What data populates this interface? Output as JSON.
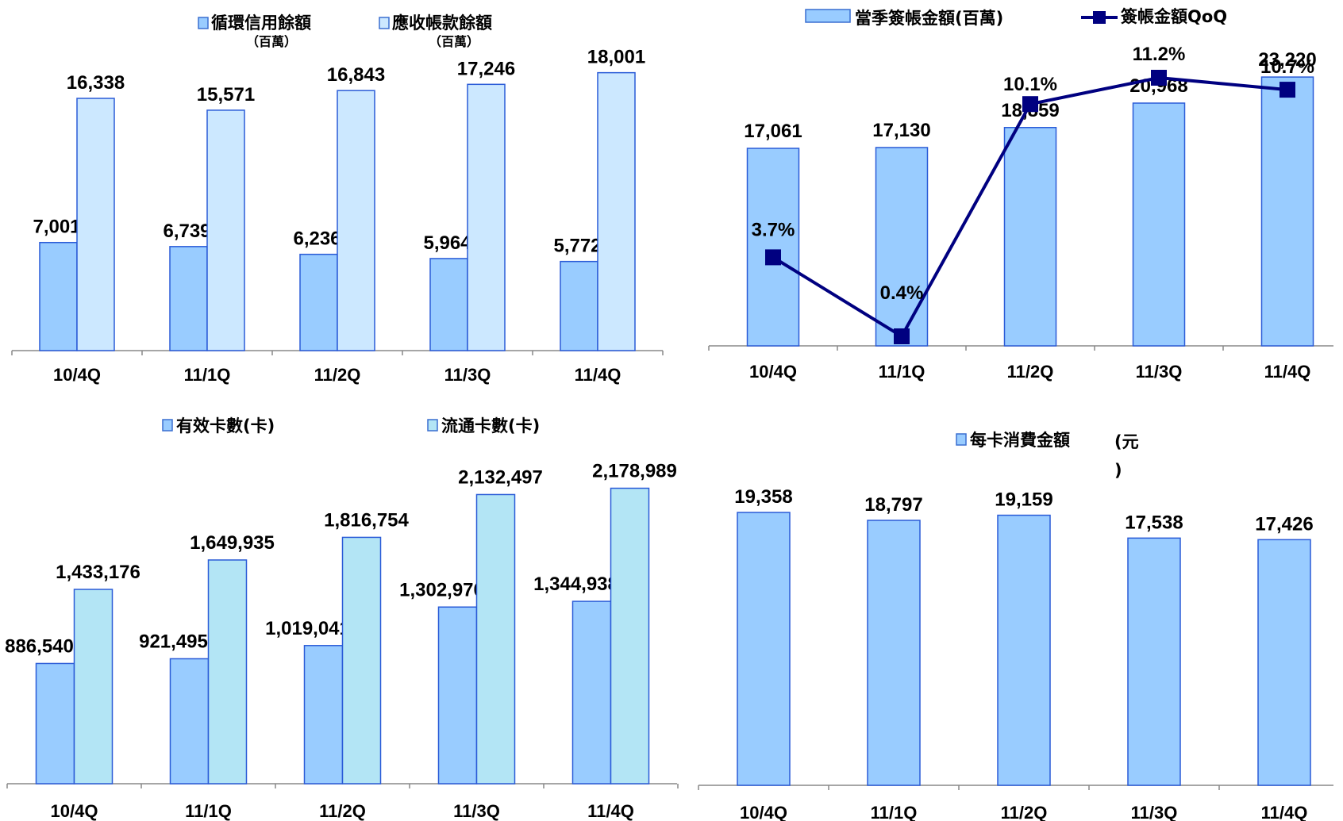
{
  "chart_data": [
    {
      "type": "bar",
      "categories": [
        "10/4Q",
        "11/1Q",
        "11/2Q",
        "11/3Q",
        "11/4Q"
      ],
      "series": [
        {
          "name": "循環信用餘額",
          "name_sub": "（百萬）",
          "values": [
            7001,
            6739,
            6236,
            5964,
            5772
          ],
          "labels": [
            "7,001",
            "6,739",
            "6,236",
            "5,964",
            "5,772"
          ],
          "color": "#99ccff"
        },
        {
          "name": "應收帳款餘額",
          "name_sub": "（百萬）",
          "values": [
            16338,
            15571,
            16843,
            17246,
            18001
          ],
          "labels": [
            "16,338",
            "15,571",
            "16,843",
            "17,246",
            "18,001"
          ],
          "color": "#cce8ff"
        }
      ]
    },
    {
      "type": "bar+line",
      "categories": [
        "10/4Q",
        "11/1Q",
        "11/2Q",
        "11/3Q",
        "11/4Q"
      ],
      "series": [
        {
          "name": "當季簽帳金額(百萬)",
          "kind": "bar",
          "values": [
            17061,
            17130,
            18859,
            20968,
            23220
          ],
          "labels": [
            "17,061",
            "17,130",
            "18,859",
            "20,968",
            "23,220"
          ],
          "color": "#99ccff"
        },
        {
          "name": "簽帳金額QoQ",
          "kind": "line",
          "values": [
            3.7,
            0.4,
            10.1,
            11.2,
            10.7
          ],
          "labels": [
            "3.7%",
            "0.4%",
            "10.1%",
            "11.2%",
            "10.7%"
          ],
          "color": "#000080"
        }
      ]
    },
    {
      "type": "bar",
      "categories": [
        "10/4Q",
        "11/1Q",
        "11/2Q",
        "11/3Q",
        "11/4Q"
      ],
      "series": [
        {
          "name": "有效卡數(卡)",
          "values": [
            886540,
            921495,
            1019041,
            1302970,
            1344938
          ],
          "labels": [
            "886,540",
            "921,495",
            "1,019,041",
            "1,302,970",
            "1,344,938"
          ],
          "color": "#99ccff"
        },
        {
          "name": "流通卡數(卡)",
          "values": [
            1433176,
            1649935,
            1816754,
            2132497,
            2178989
          ],
          "labels": [
            "1,433,176",
            "1,649,935",
            "1,816,754",
            "2,132,497",
            "2,178,989"
          ],
          "color": "#b3e5f5"
        }
      ]
    },
    {
      "type": "bar",
      "categories": [
        "10/4Q",
        "11/1Q",
        "11/2Q",
        "11/3Q",
        "11/4Q"
      ],
      "series": [
        {
          "name": "每卡消費金額",
          "name_tail": "(元",
          "name_tail2": ")",
          "values": [
            19358,
            18797,
            19159,
            17538,
            17426
          ],
          "labels": [
            "19,358",
            "18,797",
            "19,159",
            "17,538",
            "17,426"
          ],
          "color": "#99ccff"
        }
      ]
    }
  ]
}
